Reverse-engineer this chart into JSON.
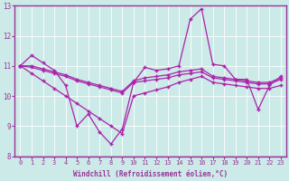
{
  "xlabel": "Windchill (Refroidissement éolien,°C)",
  "bg_color": "#cceae8",
  "plot_bg_color": "#cceae8",
  "line_color": "#aa22aa",
  "axis_color": "#993399",
  "grid_color": "#ffffff",
  "tick_label_color": "#993399",
  "xlabel_color": "#993399",
  "xlim": [
    -0.5,
    23.5
  ],
  "ylim": [
    8,
    13
  ],
  "yticks": [
    8,
    9,
    10,
    11,
    12,
    13
  ],
  "xticks": [
    0,
    1,
    2,
    3,
    4,
    5,
    6,
    7,
    8,
    9,
    10,
    11,
    12,
    13,
    14,
    15,
    16,
    17,
    18,
    19,
    20,
    21,
    22,
    23
  ],
  "xtick_labels": [
    "0",
    "1",
    "2",
    "3",
    "4",
    "5",
    "6",
    "7",
    "8",
    "9",
    "10",
    "11",
    "12",
    "13",
    "14",
    "15",
    "16",
    "17",
    "18",
    "19",
    "20",
    "21",
    "22",
    "23"
  ],
  "series": [
    [
      11.0,
      11.35,
      11.1,
      10.85,
      10.35,
      9.0,
      9.4,
      8.8,
      8.4,
      8.9,
      10.45,
      10.95,
      10.85,
      10.9,
      11.0,
      12.55,
      12.9,
      11.05,
      11.0,
      10.55,
      10.55,
      9.55,
      10.35,
      10.65
    ],
    [
      11.0,
      11.0,
      10.9,
      10.8,
      10.7,
      10.55,
      10.45,
      10.35,
      10.25,
      10.15,
      10.5,
      10.6,
      10.65,
      10.7,
      10.8,
      10.85,
      10.9,
      10.65,
      10.6,
      10.55,
      10.5,
      10.45,
      10.45,
      10.6
    ],
    [
      11.0,
      10.95,
      10.85,
      10.75,
      10.65,
      10.5,
      10.4,
      10.3,
      10.2,
      10.1,
      10.45,
      10.5,
      10.55,
      10.6,
      10.7,
      10.75,
      10.8,
      10.6,
      10.55,
      10.5,
      10.45,
      10.4,
      10.4,
      10.55
    ],
    [
      11.0,
      10.75,
      10.5,
      10.25,
      10.0,
      9.75,
      9.5,
      9.25,
      9.0,
      8.75,
      10.0,
      10.1,
      10.2,
      10.3,
      10.45,
      10.55,
      10.65,
      10.45,
      10.4,
      10.35,
      10.3,
      10.25,
      10.25,
      10.35
    ]
  ]
}
